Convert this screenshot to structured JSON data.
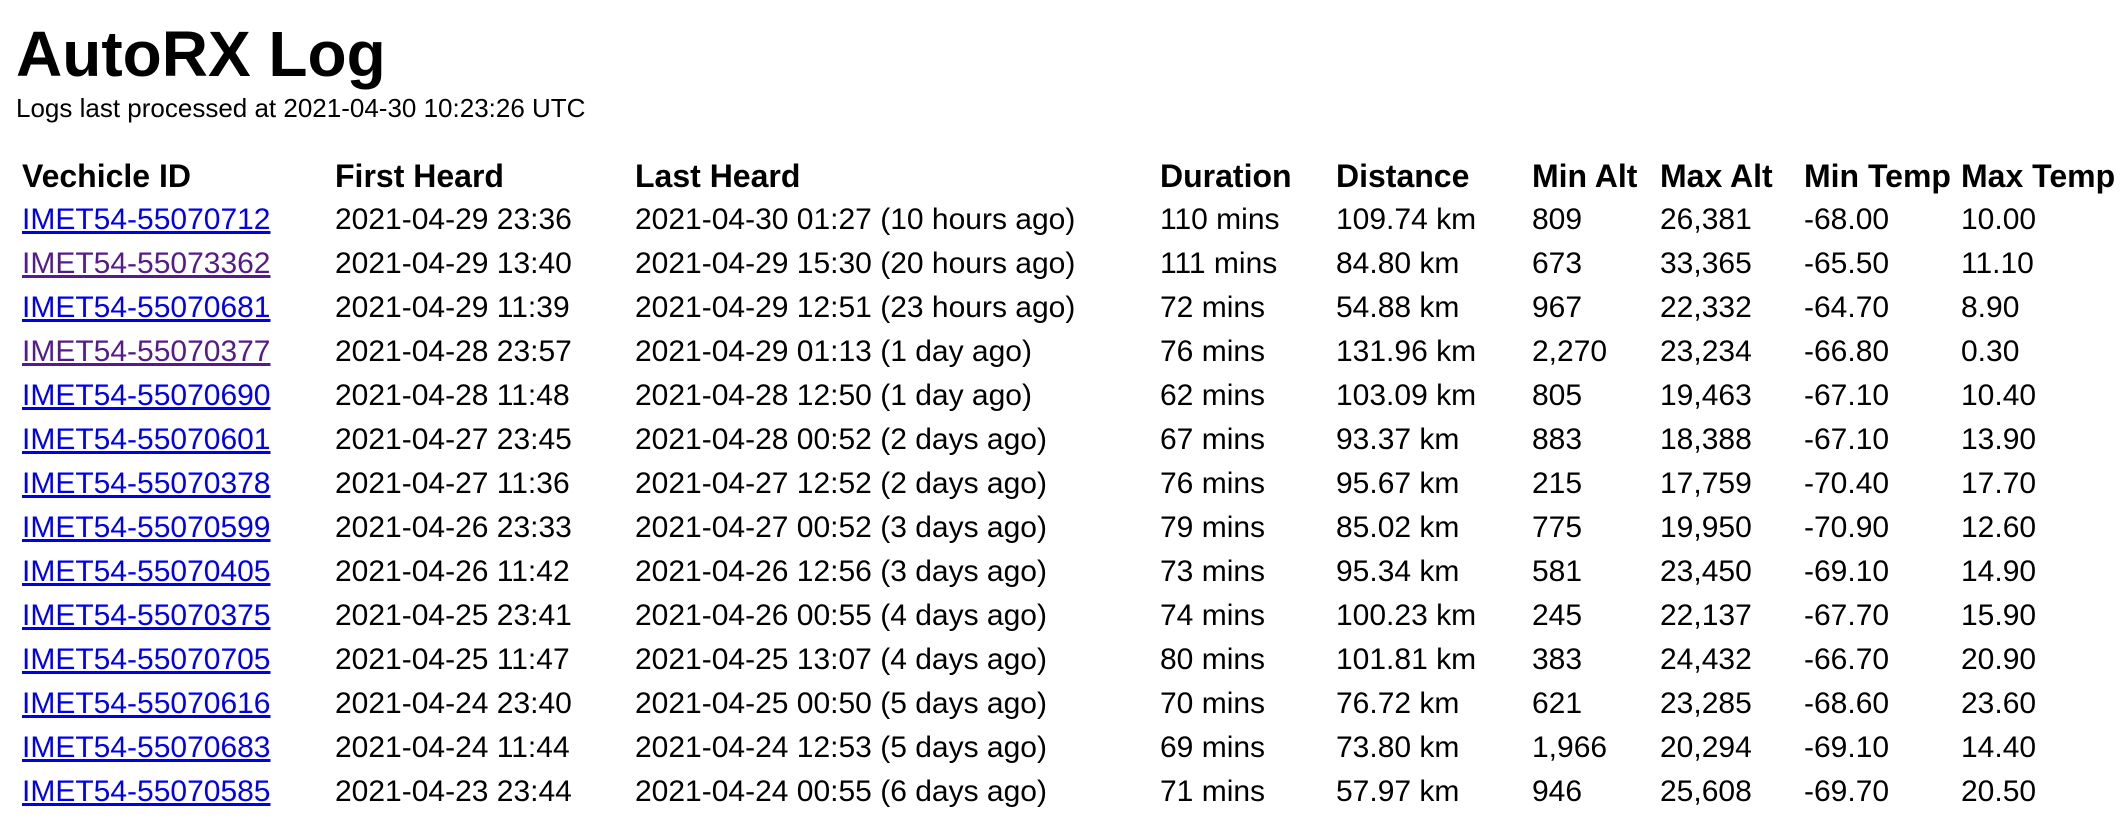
{
  "title": "AutoRX Log",
  "subtitle": "Logs last processed at 2021-04-30 10:23:26 UTC",
  "table": {
    "headers": [
      "Vechicle ID",
      "First Heard",
      "Last Heard",
      "Duration",
      "Distance",
      "Min Alt",
      "Max Alt",
      "Min Temp",
      "Max Temp"
    ],
    "rows": [
      [
        "IMET54-55070712",
        "2021-04-29 23:36",
        "2021-04-30 01:27 (10 hours ago)",
        "110 mins",
        "109.74 km",
        "809",
        "26,381",
        "-68.00",
        "10.00"
      ],
      [
        "IMET54-55073362",
        "2021-04-29 13:40",
        "2021-04-29 15:30 (20 hours ago)",
        "111 mins",
        "84.80 km",
        "673",
        "33,365",
        "-65.50",
        "11.10"
      ],
      [
        "IMET54-55070681",
        "2021-04-29 11:39",
        "2021-04-29 12:51 (23 hours ago)",
        "72 mins",
        "54.88 km",
        "967",
        "22,332",
        "-64.70",
        "8.90"
      ],
      [
        "IMET54-55070377",
        "2021-04-28 23:57",
        "2021-04-29 01:13 (1 day ago)",
        "76 mins",
        "131.96 km",
        "2,270",
        "23,234",
        "-66.80",
        "0.30"
      ],
      [
        "IMET54-55070690",
        "2021-04-28 11:48",
        "2021-04-28 12:50 (1 day ago)",
        "62 mins",
        "103.09 km",
        "805",
        "19,463",
        "-67.10",
        "10.40"
      ],
      [
        "IMET54-55070601",
        "2021-04-27 23:45",
        "2021-04-28 00:52 (2 days ago)",
        "67 mins",
        "93.37 km",
        "883",
        "18,388",
        "-67.10",
        "13.90"
      ],
      [
        "IMET54-55070378",
        "2021-04-27 11:36",
        "2021-04-27 12:52 (2 days ago)",
        "76 mins",
        "95.67 km",
        "215",
        "17,759",
        "-70.40",
        "17.70"
      ],
      [
        "IMET54-55070599",
        "2021-04-26 23:33",
        "2021-04-27 00:52 (3 days ago)",
        "79 mins",
        "85.02 km",
        "775",
        "19,950",
        "-70.90",
        "12.60"
      ],
      [
        "IMET54-55070405",
        "2021-04-26 11:42",
        "2021-04-26 12:56 (3 days ago)",
        "73 mins",
        "95.34 km",
        "581",
        "23,450",
        "-69.10",
        "14.90"
      ],
      [
        "IMET54-55070375",
        "2021-04-25 23:41",
        "2021-04-26 00:55 (4 days ago)",
        "74 mins",
        "100.23 km",
        "245",
        "22,137",
        "-67.70",
        "15.90"
      ],
      [
        "IMET54-55070705",
        "2021-04-25 11:47",
        "2021-04-25 13:07 (4 days ago)",
        "80 mins",
        "101.81 km",
        "383",
        "24,432",
        "-66.70",
        "20.90"
      ],
      [
        "IMET54-55070616",
        "2021-04-24 23:40",
        "2021-04-25 00:50 (5 days ago)",
        "70 mins",
        "76.72 km",
        "621",
        "23,285",
        "-68.60",
        "23.60"
      ],
      [
        "IMET54-55070683",
        "2021-04-24 11:44",
        "2021-04-24 12:53 (5 days ago)",
        "69 mins",
        "73.80 km",
        "1,966",
        "20,294",
        "-69.10",
        "14.40"
      ],
      [
        "IMET54-55070585",
        "2021-04-23 23:44",
        "2021-04-24 00:55 (6 days ago)",
        "71 mins",
        "57.97 km",
        "946",
        "25,608",
        "-69.70",
        "20.50"
      ]
    ],
    "visited_rows": [
      1,
      3
    ]
  },
  "colors": {
    "link": "#0000EE",
    "visited_link": "#551A8B",
    "text": "#000000",
    "background": "#FFFFFF"
  }
}
